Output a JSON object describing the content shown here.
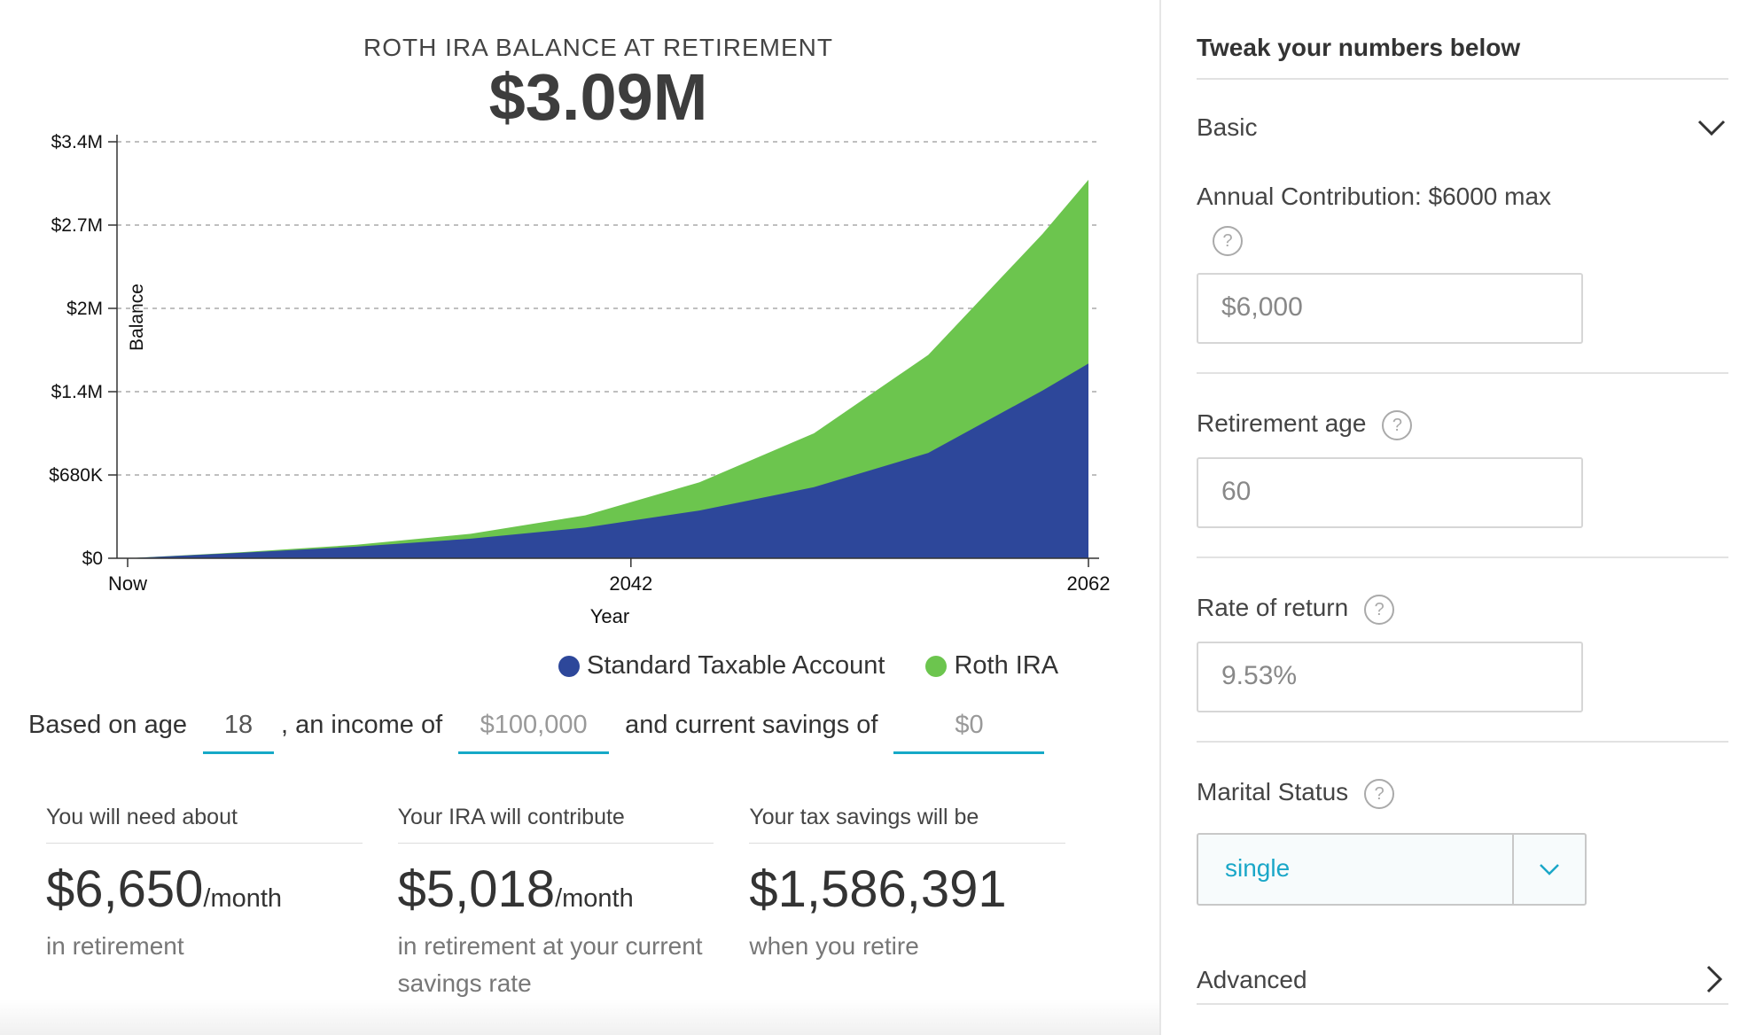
{
  "header": {
    "subtitle": "ROTH IRA BALANCE AT RETIREMENT",
    "balance": "$3.09M"
  },
  "chart_data": {
    "type": "area",
    "xlabel": "Year",
    "ylabel": "Balance",
    "x_ticks": [
      "Now",
      "2042",
      "2062"
    ],
    "y_ticks": [
      "$3.4M",
      "$2.7M",
      "$2M",
      "$1.4M",
      "$680K",
      "$0"
    ],
    "ylim": [
      0,
      3400000
    ],
    "x": [
      2020,
      2025,
      2030,
      2035,
      2040,
      2045,
      2050,
      2055,
      2060,
      2062
    ],
    "series": [
      {
        "name": "Standard Taxable Account",
        "color": "#2d479a",
        "values": [
          0,
          45000,
          95000,
          160000,
          250000,
          390000,
          580000,
          860000,
          1370000,
          1590000
        ]
      },
      {
        "name": "Roth IRA",
        "color": "#6cc54e",
        "values": [
          0,
          50000,
          110000,
          200000,
          350000,
          620000,
          1020000,
          1660000,
          2650000,
          3090000
        ]
      }
    ],
    "grid": true,
    "legend": "bottom-right"
  },
  "legend": [
    {
      "label": "Standard Taxable Account",
      "color": "#2d479a"
    },
    {
      "label": "Roth IRA",
      "color": "#6cc54e"
    }
  ],
  "based": {
    "t1": "Based on age",
    "age": "18",
    "t2": ", an income of",
    "income": "$100,000",
    "t3": "and current savings of",
    "savings": "$0"
  },
  "stats": [
    {
      "label": "You will need about",
      "value": "$6,650",
      "unit": "/month",
      "desc": "in retirement"
    },
    {
      "label": "Your IRA will contribute",
      "value": "$5,018",
      "unit": "/month",
      "desc": "in retirement at your current savings rate"
    },
    {
      "label": "Your tax savings will be",
      "value": "$1,586,391",
      "unit": "",
      "desc": "when you retire"
    }
  ],
  "panel": {
    "title": "Tweak your numbers below",
    "basic": "Basic",
    "contribution_label": "Annual Contribution: $6000 max",
    "contribution_value": "$6,000",
    "retirement_label": "Retirement age",
    "retirement_value": "60",
    "rate_label": "Rate of return",
    "rate_value": "9.53%",
    "marital_label": "Marital Status",
    "marital_value": "single",
    "advanced": "Advanced",
    "help": "?"
  }
}
